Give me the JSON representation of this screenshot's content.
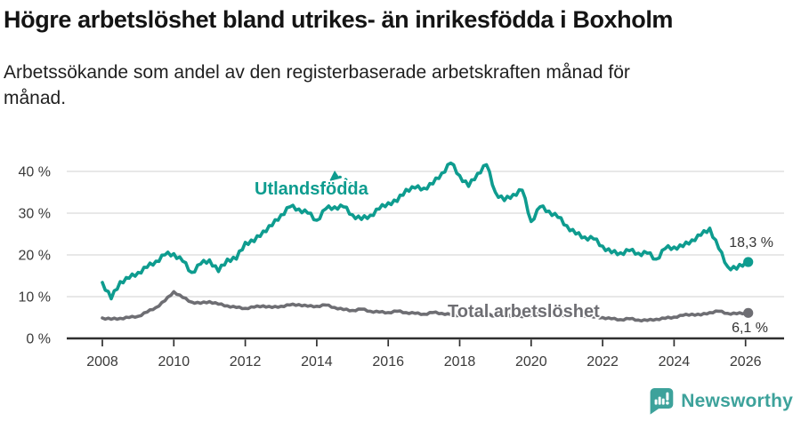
{
  "header": {
    "title": "Högre arbetslöshet bland utrikes- än inrikesfödda i Boxholm",
    "subtitle_lines": [
      "Arbetssökande som andel av den registerbaserade arbetskraften månad för",
      "månad."
    ]
  },
  "chart_data": {
    "type": "line",
    "title": "Högre arbetslöshet bland utrikes- än inrikesfödda i Boxholm",
    "subtitle": "Arbetssökande som andel av den registerbaserade arbetskraften månad för månad.",
    "grid": true,
    "x_start": 2008.0,
    "x_step": 0.25,
    "xlim": [
      2007.6,
      2027.0
    ],
    "ylim": [
      0,
      44
    ],
    "x_ticks": [
      2008,
      2010,
      2012,
      2014,
      2016,
      2018,
      2020,
      2022,
      2024,
      2026
    ],
    "y_ticks": [
      0,
      10,
      20,
      30,
      40
    ],
    "y_tick_suffix": " %",
    "series": [
      {
        "id": "utlandsfodda",
        "name": "Utlandsfödda",
        "color": "#0e9c8f",
        "end_label": "18,3 %",
        "end_value": 18.3,
        "values": [
          13.4,
          9.5,
          13.6,
          14.4,
          15.8,
          17.0,
          18.5,
          20.0,
          20.3,
          18.5,
          15.8,
          17.8,
          18.8,
          16.0,
          19.0,
          19.0,
          23.0,
          23.2,
          25.7,
          27.0,
          29.6,
          31.5,
          31.0,
          30.0,
          28.3,
          31.0,
          31.5,
          31.5,
          29.6,
          28.5,
          29.5,
          31.0,
          32.5,
          32.8,
          35.7,
          36.0,
          36.0,
          37.0,
          39.6,
          42.0,
          39.0,
          36.4,
          39.5,
          41.6,
          35.0,
          33.0,
          34.5,
          35.5,
          28.0,
          31.5,
          30.5,
          29.0,
          27.0,
          25.0,
          24.3,
          23.8,
          22.1,
          20.5,
          20.5,
          21.0,
          20.4,
          20.4,
          19.0,
          21.5,
          21.9,
          22.0,
          23.6,
          24.7,
          26.4,
          21.5,
          17.2,
          16.6,
          18.3
        ]
      },
      {
        "id": "total-arbetsloshet",
        "name": "Total arbetslöshet",
        "color": "#6e6e73",
        "end_label": "6,1 %",
        "end_value": 6.1,
        "values": [
          4.9,
          4.6,
          4.8,
          5.0,
          5.3,
          6.3,
          7.4,
          9.0,
          11.2,
          9.8,
          8.7,
          8.4,
          8.8,
          8.2,
          7.8,
          7.4,
          7.2,
          7.5,
          7.8,
          7.4,
          7.7,
          8.0,
          8.1,
          7.7,
          7.7,
          8.0,
          7.4,
          6.9,
          6.7,
          7.0,
          6.5,
          6.3,
          6.2,
          6.5,
          6.2,
          6.0,
          5.8,
          6.2,
          6.0,
          5.7,
          5.5,
          5.8,
          5.6,
          5.7,
          5.4,
          5.7,
          5.4,
          5.2,
          5.5,
          6.0,
          5.8,
          5.5,
          5.6,
          5.8,
          5.4,
          5.1,
          5.0,
          4.7,
          4.5,
          4.7,
          4.4,
          4.3,
          4.6,
          4.8,
          5.1,
          5.5,
          5.8,
          5.6,
          6.2,
          6.5,
          6.0,
          5.9,
          6.1
        ]
      }
    ],
    "colors": {
      "accent_teal": "#0e9c8f",
      "series_gray": "#6e6e73",
      "gridline": "#d9d9d9",
      "axis": "#2f2f2f",
      "tick_text": "#3a3a3a"
    }
  },
  "footer": {
    "brand": "Newsworthy",
    "brand_color": "#3da29b"
  }
}
